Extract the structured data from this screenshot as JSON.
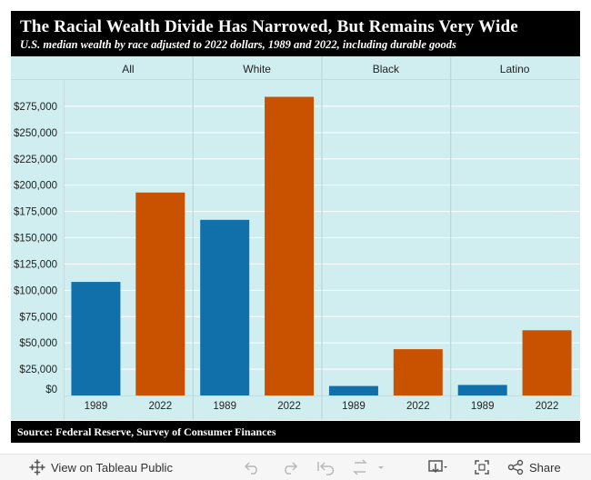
{
  "header": {
    "title": "The Racial Wealth Divide Has Narrowed, But Remains Very Wide",
    "subtitle": "U.S. median wealth by race adjusted to 2022 dollars, 1989 and 2022, including durable goods"
  },
  "footer": {
    "source": "Source: Federal Reserve, Survey of Consumer Finances"
  },
  "toolbar": {
    "view_label": "View on Tableau Public",
    "share_label": "Share"
  },
  "colors": {
    "background": "#d0eef0",
    "year_1989": "#1170aa",
    "year_2022": "#c85200",
    "grid": "#ffffff"
  },
  "chart_data": {
    "type": "bar",
    "groups": [
      "All",
      "White",
      "Black",
      "Latino"
    ],
    "categories": [
      "1989",
      "2022"
    ],
    "values": {
      "All": [
        108000,
        193000
      ],
      "White": [
        167000,
        284000
      ],
      "Black": [
        9000,
        44000
      ],
      "Latino": [
        10000,
        62000
      ]
    },
    "yticks": [
      "$0",
      "$25,000",
      "$50,000",
      "$75,000",
      "$100,000",
      "$125,000",
      "$150,000",
      "$175,000",
      "$200,000",
      "$225,000",
      "$250,000",
      "$275,000"
    ],
    "ylim": [
      0,
      300000
    ],
    "grid": true
  }
}
